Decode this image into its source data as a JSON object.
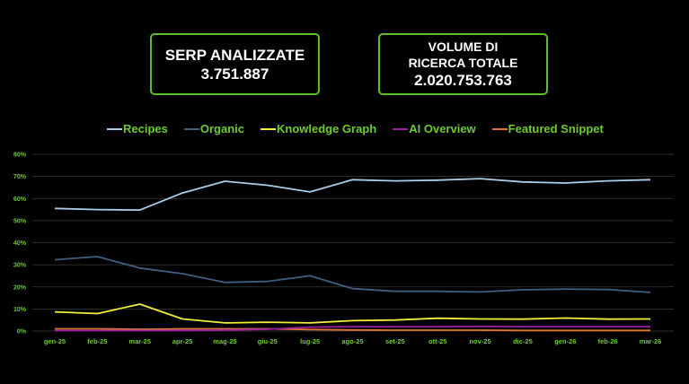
{
  "kpis": [
    {
      "title": "SERP ANALIZZATE",
      "value": "3.751.887"
    },
    {
      "title_line1": "VOLUME DI",
      "title_line2": "RICERCA TOTALE",
      "value": "2.020.753.763"
    }
  ],
  "legend": [
    {
      "label": "Recipes",
      "color": "#a9cde8"
    },
    {
      "label": "Organic",
      "color": "#3f5f80"
    },
    {
      "label": "Knowledge Graph",
      "color": "#f2ef3a"
    },
    {
      "label": "AI Overview",
      "color": "#9b1fa0"
    },
    {
      "label": "Featured Snippet",
      "color": "#e0743a"
    }
  ],
  "chart_data": {
    "type": "line",
    "title": "",
    "xlabel": "",
    "ylabel": "",
    "ylim": [
      0,
      80
    ],
    "yticks": [
      "0%",
      "10%",
      "20%",
      "30%",
      "40%",
      "50%",
      "60%",
      "70%",
      "80%"
    ],
    "grid": true,
    "legend_position": "top",
    "categories": [
      "gen-25",
      "feb-25",
      "mar-25",
      "apr-25",
      "mag-25",
      "giu-25",
      "lug-25",
      "ago-25",
      "set-25",
      "ott-25",
      "nov-25",
      "dic-25",
      "gen-26",
      "feb-26",
      "mar-26"
    ],
    "series": [
      {
        "name": "Recipes",
        "color": "#a9cde8",
        "values": [
          55.5,
          55.0,
          54.8,
          62.5,
          67.8,
          66.0,
          63.0,
          68.5,
          68.0,
          68.3,
          69.0,
          67.5,
          67.0,
          68.0,
          68.5
        ]
      },
      {
        "name": "Organic",
        "color": "#3f5f80",
        "values": [
          32.3,
          33.7,
          28.5,
          26.0,
          22.0,
          22.5,
          25.0,
          19.2,
          18.0,
          18.0,
          17.7,
          18.7,
          19.0,
          18.8,
          17.5
        ]
      },
      {
        "name": "Knowledge Graph",
        "color": "#f2ef3a",
        "values": [
          8.7,
          7.9,
          12.2,
          5.5,
          3.7,
          4.0,
          3.7,
          4.7,
          5.0,
          5.8,
          5.5,
          5.4,
          5.9,
          5.4,
          5.5
        ]
      },
      {
        "name": "AI Overview",
        "color": "#9b1fa0",
        "values": [
          0.2,
          0.2,
          0.2,
          0.3,
          0.4,
          0.8,
          1.8,
          2.0,
          2.0,
          2.0,
          2.1,
          2.0,
          2.0,
          2.0,
          2.0
        ]
      },
      {
        "name": "Featured Snippet",
        "color": "#e0743a",
        "values": [
          1.0,
          1.0,
          0.8,
          1.0,
          1.0,
          1.0,
          0.7,
          0.5,
          0.4,
          0.4,
          0.4,
          0.3,
          0.3,
          0.3,
          0.3
        ]
      }
    ]
  }
}
